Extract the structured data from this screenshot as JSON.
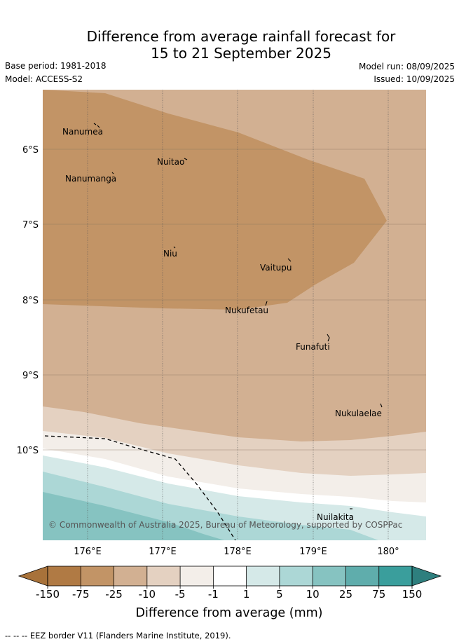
{
  "title": {
    "line1": "Difference from average rainfall forecast for",
    "line2": "15 to 21 September 2025"
  },
  "meta": {
    "base_period": "Base period: 1981-2018",
    "model": "Model: ACCESS-S2",
    "model_run": "Model run: 08/09/2025",
    "issued": "Issued: 10/09/2025"
  },
  "map": {
    "lat_labels": [
      "6°S",
      "7°S",
      "8°S",
      "9°S",
      "10°S"
    ],
    "lon_labels": [
      "176°E",
      "177°E",
      "178°E",
      "179°E",
      "180°"
    ],
    "islands": [
      "Nanumea",
      "Nuitao",
      "Nanumanga",
      "Niu",
      "Vaitupu",
      "Nukufetau",
      "Funafuti",
      "Nukulaelae",
      "Nuilakita"
    ],
    "copyright": "© Commonwealth of Australia 2025, Bureau of Meteorology, supported by COSPPac"
  },
  "colorbar": {
    "ticks": [
      "-150",
      "-75",
      "-25",
      "-10",
      "-5",
      "-1",
      "1",
      "5",
      "10",
      "25",
      "75",
      "150"
    ],
    "colors": [
      "#a8723a",
      "#b07a44",
      "#c29466",
      "#d2b092",
      "#e4d1c1",
      "#f3eee9",
      "#ffffff",
      "#d5e9e8",
      "#acd7d6",
      "#86c3c1",
      "#5fadac",
      "#3a9e9c",
      "#2e7f7e"
    ],
    "label": "Difference from average (mm)"
  },
  "footnote": "--  --  -- EEZ border V11 (Flanders Marine Institute, 2019)."
}
